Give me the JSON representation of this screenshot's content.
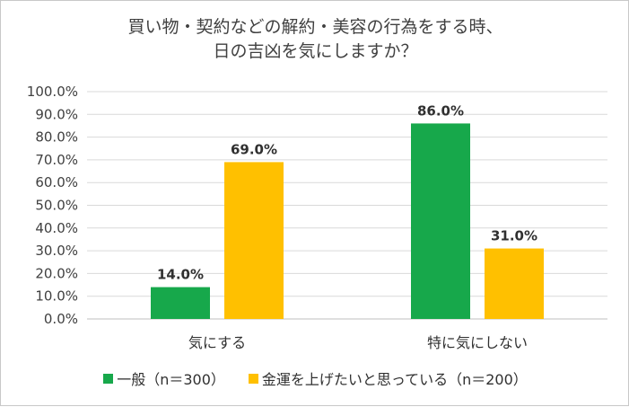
{
  "chart_data": {
    "type": "bar",
    "title_lines": [
      "買い物・契約などの解約・美容の行為をする時、",
      "日の吉凶を気にしますか？"
    ],
    "categories": [
      "気にする",
      "特に気にしない"
    ],
    "series": [
      {
        "name": "一般（n＝300）",
        "color": "#17a84b",
        "values": [
          14.0,
          86.0
        ],
        "labels": [
          "14.0%",
          "86.0%"
        ]
      },
      {
        "name": "金運を上げたいと思っている（n＝200）",
        "color": "#ffc000",
        "values": [
          69.0,
          31.0
        ],
        "labels": [
          "69.0%",
          "31.0%"
        ]
      }
    ],
    "y_ticks": [
      "0.0%",
      "10.0%",
      "20.0%",
      "30.0%",
      "40.0%",
      "50.0%",
      "60.0%",
      "70.0%",
      "80.0%",
      "90.0%",
      "100.0%"
    ],
    "ylim": [
      0,
      100
    ],
    "grid": true,
    "legend_position": "bottom"
  }
}
